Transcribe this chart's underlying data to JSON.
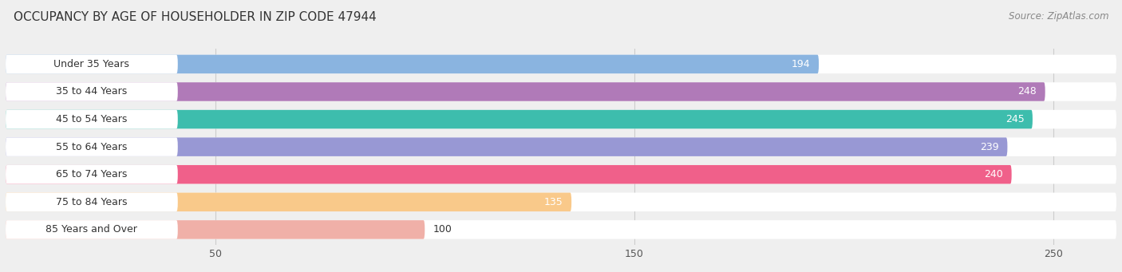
{
  "title": "OCCUPANCY BY AGE OF HOUSEHOLDER IN ZIP CODE 47944",
  "source": "Source: ZipAtlas.com",
  "categories": [
    "Under 35 Years",
    "35 to 44 Years",
    "45 to 54 Years",
    "55 to 64 Years",
    "65 to 74 Years",
    "75 to 84 Years",
    "85 Years and Over"
  ],
  "values": [
    194,
    248,
    245,
    239,
    240,
    135,
    100
  ],
  "bar_colors": [
    "#8ab4e0",
    "#b07ab8",
    "#3dbdad",
    "#9898d4",
    "#f0608a",
    "#f9c98a",
    "#f0b0a8"
  ],
  "xlim_max": 265,
  "xticks": [
    50,
    150,
    250
  ],
  "bg_color": "#efefef",
  "bar_bg_color": "#e4e4e4",
  "title_fontsize": 11,
  "source_fontsize": 8.5,
  "label_fontsize": 9,
  "value_fontsize": 9,
  "figsize": [
    14.06,
    3.41
  ],
  "dpi": 100
}
